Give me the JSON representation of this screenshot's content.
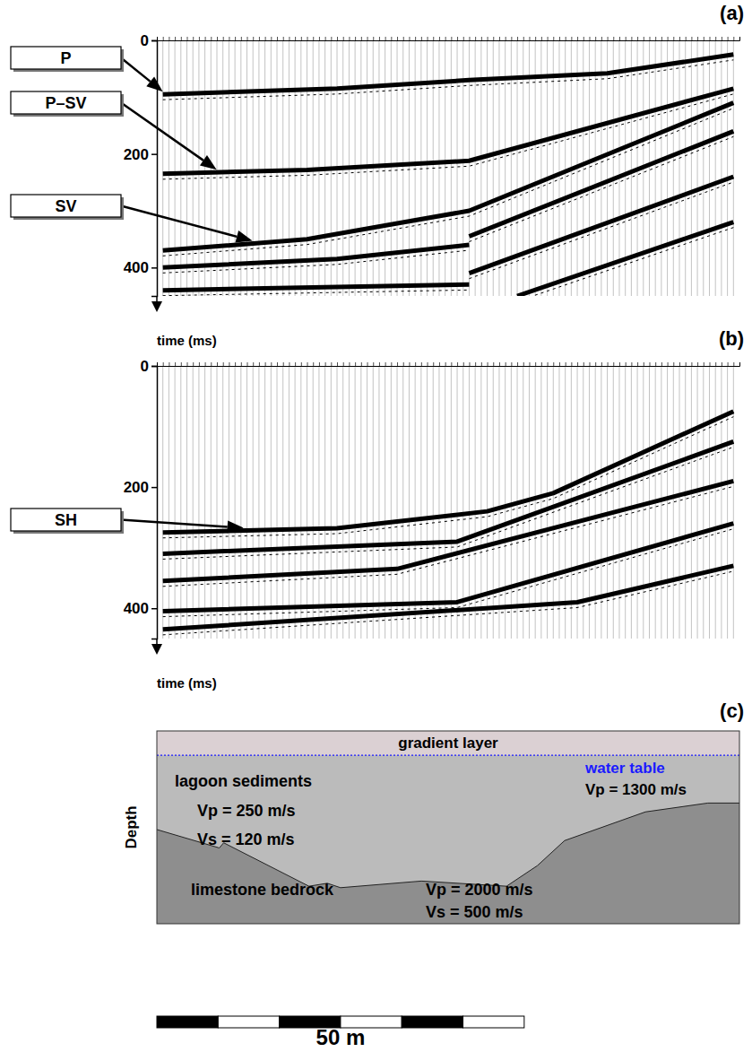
{
  "chart_data": [
    {
      "type": "seismogram",
      "panel": "(a)",
      "y_label": "time (ms)",
      "ylim": [
        0,
        450
      ],
      "yticks": [
        0,
        200,
        400
      ],
      "xlim": [
        0,
        97
      ],
      "traces": 96,
      "tick_labels": "y",
      "events": [
        {
          "label": "P",
          "trace": [
            1,
            30,
            52,
            75,
            96
          ],
          "t": [
            95,
            85,
            70,
            58,
            25
          ]
        },
        {
          "label": "P–SV",
          "trace": [
            1,
            25,
            52,
            96
          ],
          "t": [
            235,
            228,
            212,
            85
          ]
        },
        {
          "label": "SV",
          "trace": [
            1,
            25,
            52,
            96
          ],
          "t": [
            370,
            350,
            300,
            110
          ]
        },
        {
          "trace": [
            52,
            96
          ],
          "t": [
            345,
            160
          ]
        },
        {
          "trace": [
            52,
            96
          ],
          "t": [
            410,
            240
          ]
        },
        {
          "trace": [
            60,
            96
          ],
          "t": [
            450,
            320
          ]
        },
        {
          "trace": [
            1,
            30,
            52
          ],
          "t": [
            400,
            385,
            360
          ]
        },
        {
          "trace": [
            1,
            52
          ],
          "t": [
            440,
            430
          ]
        }
      ]
    },
    {
      "type": "seismogram",
      "panel": "(b)",
      "y_label": "time (ms)",
      "ylim": [
        0,
        450
      ],
      "yticks": [
        0,
        200,
        400
      ],
      "xlim": [
        0,
        97
      ],
      "traces": 96,
      "tick_labels": "y",
      "events": [
        {
          "label": "SH",
          "trace": [
            1,
            30,
            55,
            66,
            96
          ],
          "t": [
            275,
            268,
            240,
            210,
            75
          ]
        },
        {
          "trace": [
            1,
            50,
            96
          ],
          "t": [
            310,
            290,
            125
          ]
        },
        {
          "trace": [
            1,
            40,
            96
          ],
          "t": [
            355,
            335,
            190
          ]
        },
        {
          "trace": [
            1,
            50,
            96
          ],
          "t": [
            405,
            390,
            260
          ]
        },
        {
          "trace": [
            1,
            70,
            96
          ],
          "t": [
            435,
            390,
            330
          ]
        }
      ]
    }
  ],
  "cross_section": {
    "panel": "(c)",
    "y_label": "Depth",
    "xlim": [
      0,
      79.3
    ],
    "depth_lim": [
      0,
      26.2
    ],
    "gradient_layer": {
      "label": "gradient layer",
      "bottom": 3.3,
      "color": "#dbd0d3"
    },
    "water_table": {
      "label": "water table",
      "text": "Vp = 1300 m/s",
      "depth": 3.3,
      "color": "#1a1aff"
    },
    "sediments": {
      "label": "lagoon sediments",
      "texts": [
        "Vp = 250 m/s",
        "Vs = 120 m/s"
      ],
      "color": "#bbbbbb"
    },
    "bedrock": {
      "label": "limestone bedrock",
      "texts": [
        "Vp = 2000 m/s",
        "Vs = 500 m/s"
      ],
      "color": "#8e8e8e",
      "x": [
        0,
        8.5,
        9.1,
        20.7,
        23.2,
        25,
        36,
        47.6,
        51.8,
        55.5,
        66.5,
        75,
        79.3
      ],
      "depth": [
        13.4,
        15.9,
        15.2,
        21.1,
        20.7,
        21.3,
        20.4,
        21.1,
        18.3,
        14.9,
        11,
        9.8,
        9.8
      ]
    },
    "scale_bar": {
      "length": 50,
      "segments": 6,
      "label": "50 m"
    }
  }
}
